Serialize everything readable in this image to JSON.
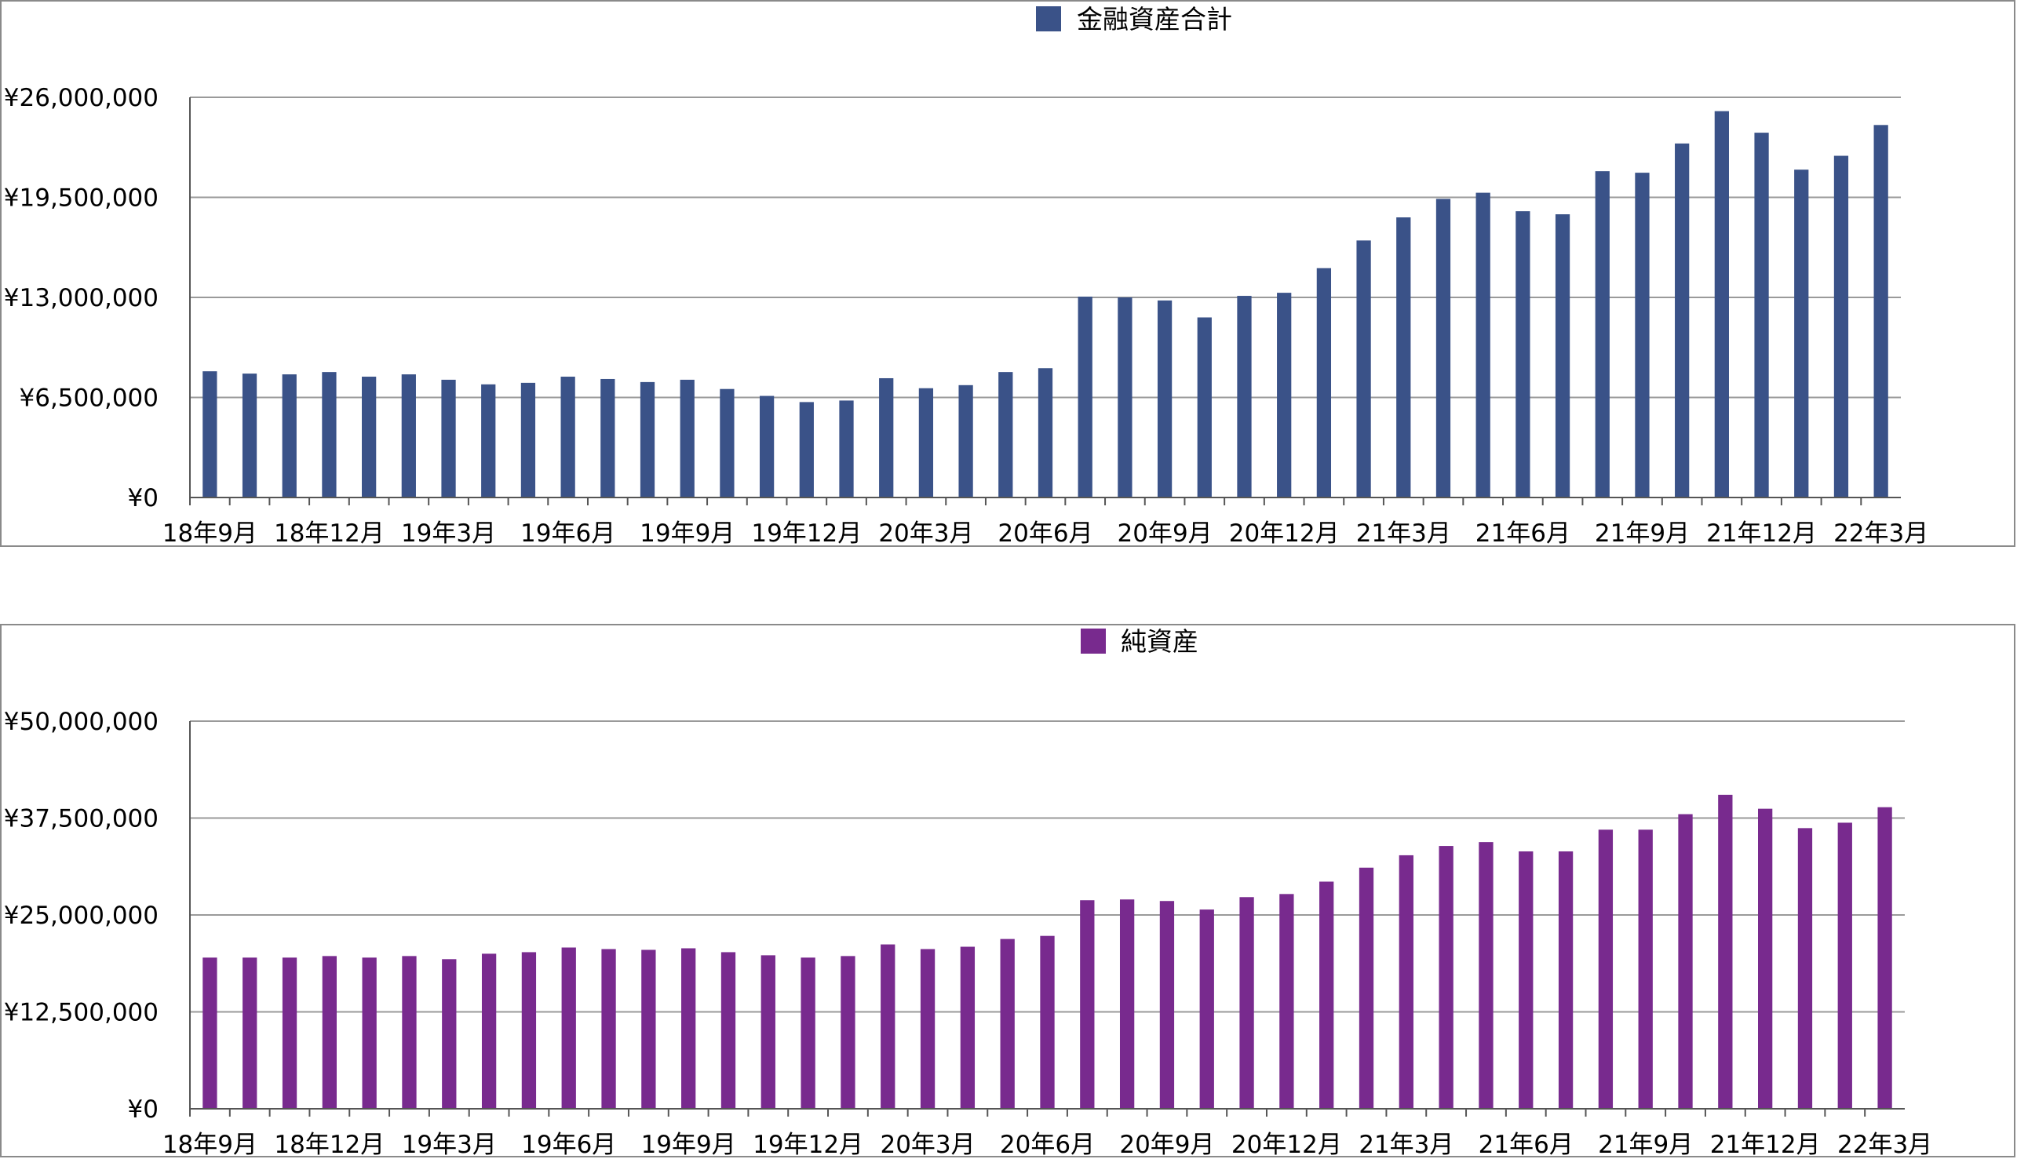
{
  "charts": [
    {
      "type": "bar",
      "legend_position": "top",
      "series_name": "金融資産合計",
      "color": "#3a5288",
      "ylim": [
        0,
        26000000
      ],
      "yticks": [
        "¥0",
        "¥6,500,000",
        "¥13,000,000",
        "¥19,500,000",
        "¥26,000,000"
      ],
      "xtick_labels": [
        "18年9月",
        "18年12月",
        "19年3月",
        "19年6月",
        "19年9月",
        "19年12月",
        "20年3月",
        "20年6月",
        "20年9月",
        "20年12月",
        "21年3月",
        "21年6月",
        "21年9月",
        "21年12月",
        "22年3月"
      ],
      "grid": true
    },
    {
      "type": "bar",
      "legend_position": "top",
      "series_name": "純資産",
      "color": "#782a8e",
      "ylim": [
        0,
        50000000
      ],
      "yticks": [
        "¥0",
        "¥12,500,000",
        "¥25,000,000",
        "¥37,500,000",
        "¥50,000,000"
      ],
      "xtick_labels": [
        "18年9月",
        "18年12月",
        "19年3月",
        "19年6月",
        "19年9月",
        "19年12月",
        "20年3月",
        "20年6月",
        "20年9月",
        "20年12月",
        "21年3月",
        "21年6月",
        "21年9月",
        "21年12月",
        "22年3月"
      ],
      "grid": true
    }
  ],
  "chart_data": [
    {
      "type": "bar",
      "series": [
        {
          "name": "金融資産合計",
          "values": [
            8200000,
            8050000,
            8000000,
            8150000,
            7850000,
            8000000,
            7650000,
            7350000,
            7450000,
            7850000,
            7700000,
            7500000,
            7650000,
            7050000,
            6600000,
            6200000,
            6300000,
            7750000,
            7100000,
            7300000,
            8150000,
            8400000,
            13050000,
            13000000,
            12800000,
            11700000,
            13100000,
            13300000,
            14900000,
            16700000,
            18200000,
            19400000,
            19800000,
            18600000,
            18400000,
            21200000,
            21100000,
            23000000,
            25100000,
            23700000,
            21300000,
            22200000,
            24200000
          ]
        }
      ],
      "ylim": [
        0,
        26000000
      ],
      "legend": "top"
    },
    {
      "type": "bar",
      "series": [
        {
          "name": "純資産",
          "values": [
            19500000,
            19500000,
            19500000,
            19700000,
            19500000,
            19700000,
            19300000,
            20000000,
            20200000,
            20800000,
            20600000,
            20500000,
            20700000,
            20200000,
            19800000,
            19500000,
            19700000,
            21200000,
            20600000,
            20900000,
            21900000,
            22300000,
            26900000,
            27000000,
            26800000,
            25700000,
            27300000,
            27700000,
            29300000,
            31100000,
            32700000,
            33900000,
            34400000,
            33200000,
            33200000,
            36000000,
            36000000,
            38000000,
            40500000,
            38700000,
            36200000,
            36900000,
            38900000
          ]
        }
      ],
      "ylim": [
        0,
        50000000
      ],
      "legend": "top"
    }
  ]
}
